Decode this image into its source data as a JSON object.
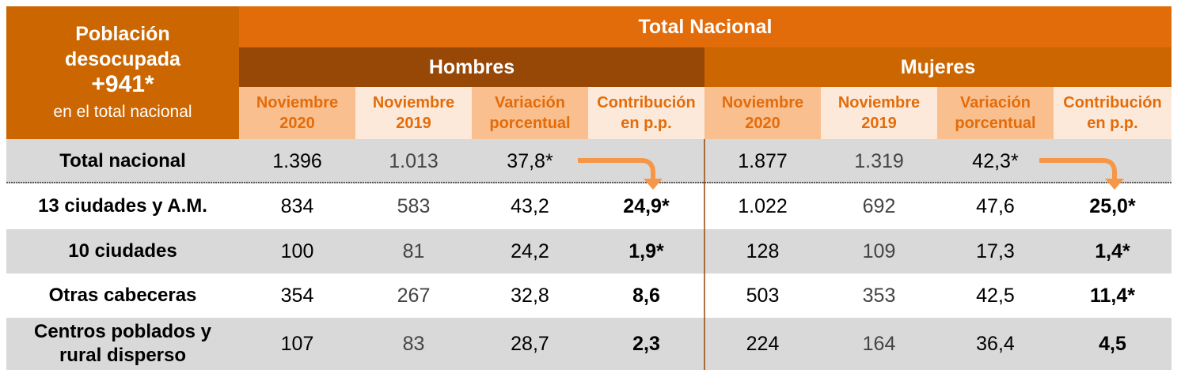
{
  "corner": {
    "line1": "Población",
    "line2": "desocupada",
    "value": "+941*",
    "line3": "en el total nacional"
  },
  "title": "Total Nacional",
  "groups": [
    "Hombres",
    "Mujeres"
  ],
  "subheaders": [
    {
      "l1": "Noviembre",
      "l2": "2020"
    },
    {
      "l1": "Noviembre",
      "l2": "2019"
    },
    {
      "l1": "Variación",
      "l2": "porcentual"
    },
    {
      "l1": "Contribución",
      "l2": "en p.p."
    },
    {
      "l1": "Noviembre",
      "l2": "2020"
    },
    {
      "l1": "Noviembre",
      "l2": "2019"
    },
    {
      "l1": "Variación",
      "l2": "porcentual"
    },
    {
      "l1": "Contribución",
      "l2": "en p.p."
    }
  ],
  "rows": [
    {
      "label": "Total nacional",
      "cells": [
        "1.396",
        "1.013",
        "37,8*",
        "",
        "1.877",
        "1.319",
        "42,3*",
        ""
      ]
    },
    {
      "label": "13 ciudades y A.M.",
      "cells": [
        "834",
        "583",
        "43,2",
        "24,9*",
        "1.022",
        "692",
        "47,6",
        "25,0*"
      ]
    },
    {
      "label": "10 ciudades",
      "cells": [
        "100",
        "81",
        "24,2",
        "1,9*",
        "128",
        "109",
        "17,3",
        "1,4*"
      ]
    },
    {
      "label": "Otras cabeceras",
      "cells": [
        "354",
        "267",
        "32,8",
        "8,6",
        "503",
        "353",
        "42,5",
        "11,4*"
      ]
    },
    {
      "label": "Centros poblados y rural disperso",
      "cells": [
        "107",
        "83",
        "28,7",
        "2,3",
        "224",
        "164",
        "36,4",
        "4,5"
      ]
    }
  ],
  "colors": {
    "orange": "#e36c0a",
    "dark": "#974706",
    "corner": "#cc6600",
    "peach": "#fabf8f",
    "light": "#fde9d9",
    "grey": "#d9d9d9",
    "arrow": "#f79646"
  }
}
